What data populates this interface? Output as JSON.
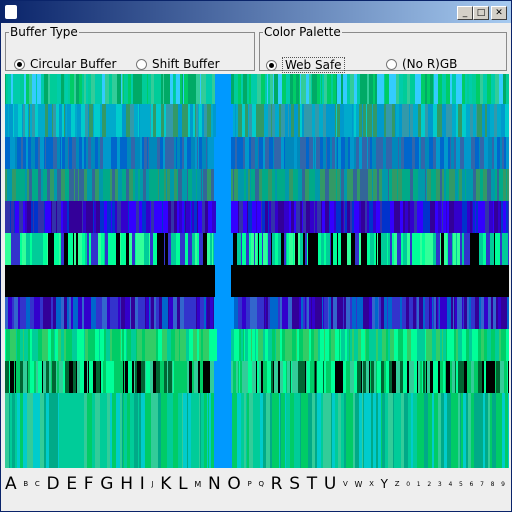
{
  "buffer_type": {
    "title": "Buffer Type",
    "options": [
      "Circular Buffer",
      "Shift Buffer"
    ],
    "selected": 0
  },
  "color_palette": {
    "title": "Color Palette",
    "options": [
      "Web Safe",
      "(No R)GB"
    ],
    "selected": 0
  },
  "legend": {
    "characters": [
      "A",
      "B",
      "C",
      "D",
      "E",
      "F",
      "G",
      "H",
      "I",
      "J",
      "K",
      "L",
      "M",
      "N",
      "O",
      "P",
      "Q",
      "R",
      "S",
      "T",
      "U",
      "V",
      "W",
      "X",
      "Y",
      "Z",
      "0",
      "1",
      "2",
      "3",
      "4",
      "5",
      "6",
      "7",
      "8",
      "9"
    ]
  }
}
